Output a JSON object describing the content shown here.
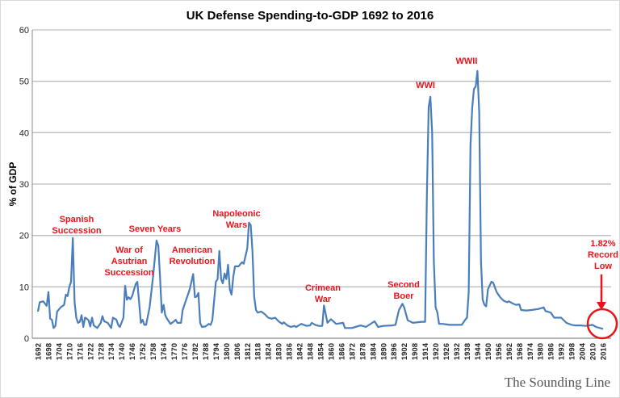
{
  "chart_data": {
    "type": "line",
    "title": "UK Defense Spending-to-GDP 1692 to 2016",
    "xlabel": "",
    "ylabel": "% of GDP",
    "xlim": [
      1692,
      2016
    ],
    "ylim": [
      0,
      60
    ],
    "yticks": [
      "0",
      "10",
      "20",
      "30",
      "40",
      "50",
      "60"
    ],
    "xticks": [
      "1692",
      "1698",
      "1704",
      "1710",
      "1716",
      "1722",
      "1728",
      "1734",
      "1740",
      "1746",
      "1752",
      "1758",
      "1764",
      "1770",
      "1776",
      "1782",
      "1788",
      "1794",
      "1800",
      "1806",
      "1812",
      "1818",
      "1824",
      "1830",
      "1836",
      "1842",
      "1848",
      "1854",
      "1860",
      "1866",
      "1872",
      "1878",
      "1884",
      "1890",
      "1896",
      "1902",
      "1908",
      "1914",
      "1920",
      "1926",
      "1932",
      "1938",
      "1944",
      "1950",
      "1956",
      "1962",
      "1968",
      "1974",
      "1980",
      "1986",
      "1992",
      "1998",
      "2004",
      "2010",
      "2016"
    ],
    "grid": true,
    "legend": "none",
    "line_color": "#4a7ebb",
    "annotation_color": "#e8141b",
    "x": [
      1692,
      1693,
      1695,
      1697,
      1698,
      1699,
      1700,
      1701,
      1702,
      1703,
      1705,
      1707,
      1708,
      1709,
      1710,
      1711,
      1712,
      1713,
      1714,
      1715,
      1716,
      1717,
      1718,
      1719,
      1720,
      1721,
      1722,
      1723,
      1724,
      1726,
      1728,
      1729,
      1730,
      1732,
      1734,
      1735,
      1737,
      1738,
      1739,
      1741,
      1742,
      1743,
      1744,
      1745,
      1746,
      1748,
      1749,
      1750,
      1751,
      1752,
      1753,
      1754,
      1756,
      1758,
      1760,
      1761,
      1762,
      1763,
      1764,
      1765,
      1766,
      1768,
      1770,
      1771,
      1772,
      1774,
      1775,
      1777,
      1779,
      1781,
      1782,
      1783,
      1784,
      1785,
      1786,
      1788,
      1790,
      1791,
      1792,
      1794,
      1795,
      1796,
      1797,
      1798,
      1799,
      1800,
      1801,
      1802,
      1803,
      1804,
      1805,
      1807,
      1809,
      1810,
      1812,
      1813,
      1814,
      1815,
      1816,
      1817,
      1818,
      1820,
      1822,
      1824,
      1826,
      1828,
      1830,
      1832,
      1833,
      1835,
      1837,
      1839,
      1840,
      1843,
      1846,
      1848,
      1849,
      1851,
      1853,
      1855,
      1856,
      1858,
      1860,
      1863,
      1867,
      1868,
      1872,
      1877,
      1880,
      1885,
      1887,
      1890,
      1895,
      1897,
      1899,
      1901,
      1902,
      1904,
      1907,
      1912,
      1914,
      1915,
      1916,
      1917,
      1918,
      1919,
      1920,
      1921,
      1922,
      1924,
      1928,
      1932,
      1935,
      1937,
      1938,
      1939,
      1940,
      1941,
      1942,
      1943,
      1944,
      1945,
      1946,
      1947,
      1948,
      1949,
      1950,
      1952,
      1953,
      1955,
      1957,
      1959,
      1961,
      1962,
      1964,
      1966,
      1968,
      1969,
      1972,
      1975,
      1979,
      1982,
      1983,
      1986,
      1988,
      1992,
      1995,
      1998,
      2000,
      2003,
      2006,
      2010,
      2012,
      2016
    ],
    "y": [
      5.2,
      7,
      7.2,
      6.3,
      9,
      3.8,
      3.6,
      2,
      2.4,
      5.2,
      6,
      6.5,
      8.5,
      8.2,
      10,
      11,
      19.5,
      7,
      4,
      3,
      3.2,
      4.5,
      2.2,
      4,
      3.8,
      3.5,
      2.3,
      4,
      2.5,
      2,
      3,
      4.3,
      3.3,
      3,
      2,
      4,
      3.6,
      2.6,
      2.2,
      4,
      10.2,
      7.5,
      8,
      7.6,
      8.2,
      10.5,
      11,
      7,
      3,
      3.6,
      2.6,
      2.6,
      6,
      12,
      19,
      18,
      12,
      5,
      6.5,
      4.5,
      3.8,
      2.8,
      3.3,
      3.6,
      3,
      3,
      5.5,
      7.5,
      9.5,
      12.5,
      8,
      8.1,
      8.8,
      3,
      2.2,
      2.3,
      2.8,
      2.6,
      3.5,
      11,
      11.5,
      17,
      11.5,
      10.7,
      12.6,
      11.5,
      14.3,
      9.5,
      8.5,
      12,
      14,
      14,
      14.8,
      14.5,
      17.5,
      22.5,
      22,
      17,
      8,
      5.5,
      5,
      5.2,
      4.7,
      4,
      3.8,
      4,
      3.3,
      2.8,
      3.1,
      2.5,
      2.2,
      2.4,
      2.2,
      2.8,
      2.4,
      2.5,
      3,
      2.6,
      2.4,
      2.4,
      6.4,
      3,
      3.7,
      2.8,
      3,
      2,
      2,
      2.5,
      2.2,
      3.3,
      2.2,
      2.4,
      2.5,
      2.6,
      5.5,
      6.7,
      6,
      3.5,
      3,
      3.2,
      3.2,
      28,
      45,
      47,
      40,
      15,
      6,
      5,
      2.8,
      2.8,
      2.6,
      2.6,
      2.6,
      3.6,
      4,
      9,
      37.5,
      45,
      48.5,
      49,
      52,
      44,
      15,
      7.5,
      6.5,
      6.2,
      9.5,
      11,
      10.8,
      9,
      8,
      7.3,
      7,
      7.2,
      6.8,
      6.5,
      6.6,
      5.5,
      5.4,
      5.5,
      5.7,
      6,
      5.3,
      5,
      4,
      4,
      3,
      2.6,
      2.5,
      2.5,
      2.4,
      2.6,
      2.2,
      1.82
    ],
    "annotations": [
      {
        "lines": [
          "Spanish",
          "Succession"
        ]
      },
      {
        "lines": [
          "War of",
          "Asutrian",
          "Succession"
        ]
      },
      {
        "lines": [
          "Seven Years"
        ]
      },
      {
        "lines": [
          "American",
          "Revolution"
        ]
      },
      {
        "lines": [
          "Napoleonic",
          "Wars"
        ]
      },
      {
        "lines": [
          "Crimean",
          "War"
        ]
      },
      {
        "lines": [
          "Second",
          "Boer"
        ]
      },
      {
        "lines": [
          "WWI"
        ]
      },
      {
        "lines": [
          "WWII"
        ]
      },
      {
        "lines": [
          "1.82%",
          "Record",
          "Low"
        ]
      }
    ]
  },
  "watermark": "The Sounding Line"
}
